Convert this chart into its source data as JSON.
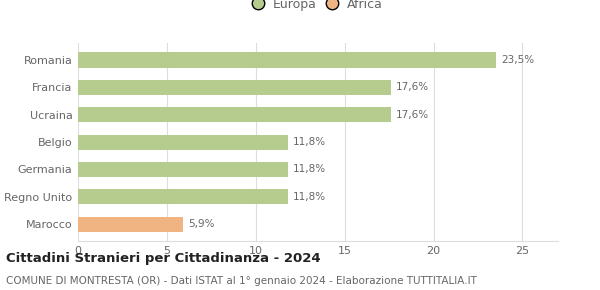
{
  "categories": [
    "Marocco",
    "Regno Unito",
    "Germania",
    "Belgio",
    "Ucraina",
    "Francia",
    "Romania"
  ],
  "values": [
    5.9,
    11.8,
    11.8,
    11.8,
    17.6,
    17.6,
    23.5
  ],
  "labels": [
    "5,9%",
    "11,8%",
    "11,8%",
    "11,8%",
    "17,6%",
    "17,6%",
    "23,5%"
  ],
  "bar_colors": [
    "#f0b482",
    "#b5cc8e",
    "#b5cc8e",
    "#b5cc8e",
    "#b5cc8e",
    "#b5cc8e",
    "#b5cc8e"
  ],
  "legend_items": [
    {
      "label": "Europa",
      "color": "#b5cc8e"
    },
    {
      "label": "Africa",
      "color": "#f0b482"
    }
  ],
  "xlim": [
    0,
    27
  ],
  "xticks": [
    0,
    5,
    10,
    15,
    20,
    25
  ],
  "title": "Cittadini Stranieri per Cittadinanza - 2024",
  "subtitle": "COMUNE DI MONTRESTA (OR) - Dati ISTAT al 1° gennaio 2024 - Elaborazione TUTTITALIA.IT",
  "title_fontsize": 9.5,
  "subtitle_fontsize": 7.5,
  "label_fontsize": 7.5,
  "tick_fontsize": 8,
  "ytick_fontsize": 8,
  "background_color": "#ffffff",
  "bar_height": 0.55,
  "grid_color": "#dddddd",
  "label_color": "#666666",
  "tick_color": "#666666"
}
